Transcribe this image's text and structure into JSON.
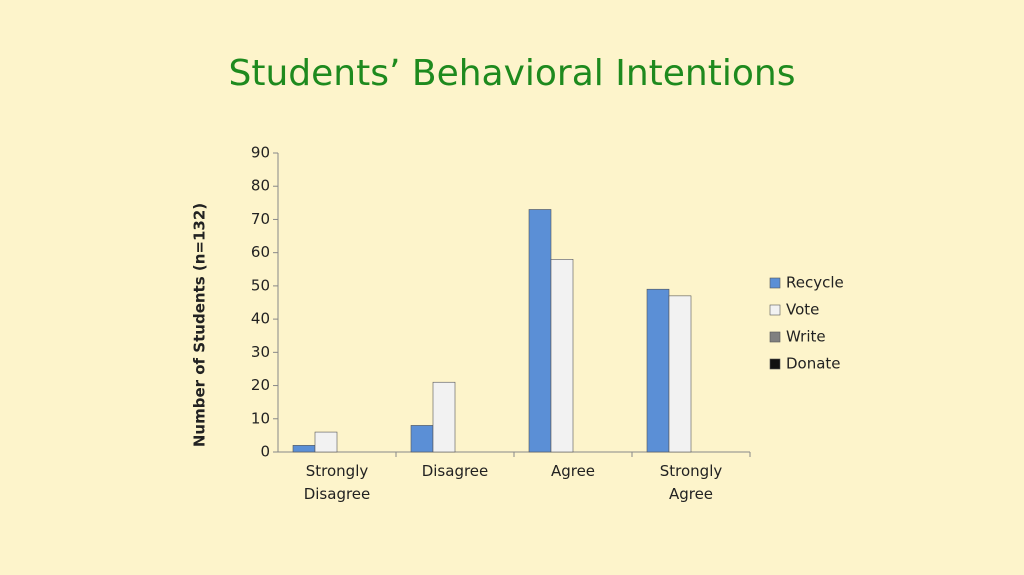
{
  "chart_data": {
    "type": "bar",
    "title": "Students’ Behavioral Intentions",
    "y_label": "Number of Students (n=132)",
    "categories": [
      "Strongly Disagree",
      "Disagree",
      "Agree",
      "Strongly Agree"
    ],
    "series": [
      {
        "name": "Recycle",
        "color": "#5b8fd6",
        "values": [
          2,
          8,
          73,
          49
        ]
      },
      {
        "name": "Vote",
        "color": "#f2f2f2",
        "values": [
          6,
          21,
          58,
          47
        ]
      },
      {
        "name": "Write",
        "color": "#808080",
        "values": [
          0,
          0,
          0,
          0
        ]
      },
      {
        "name": "Donate",
        "color": "#111111",
        "values": [
          0,
          0,
          0,
          0
        ]
      }
    ],
    "ylim": [
      0,
      90
    ],
    "yticks": [
      0,
      10,
      20,
      30,
      40,
      50,
      60,
      70,
      80,
      90
    ],
    "grid": false,
    "legend": "right"
  }
}
